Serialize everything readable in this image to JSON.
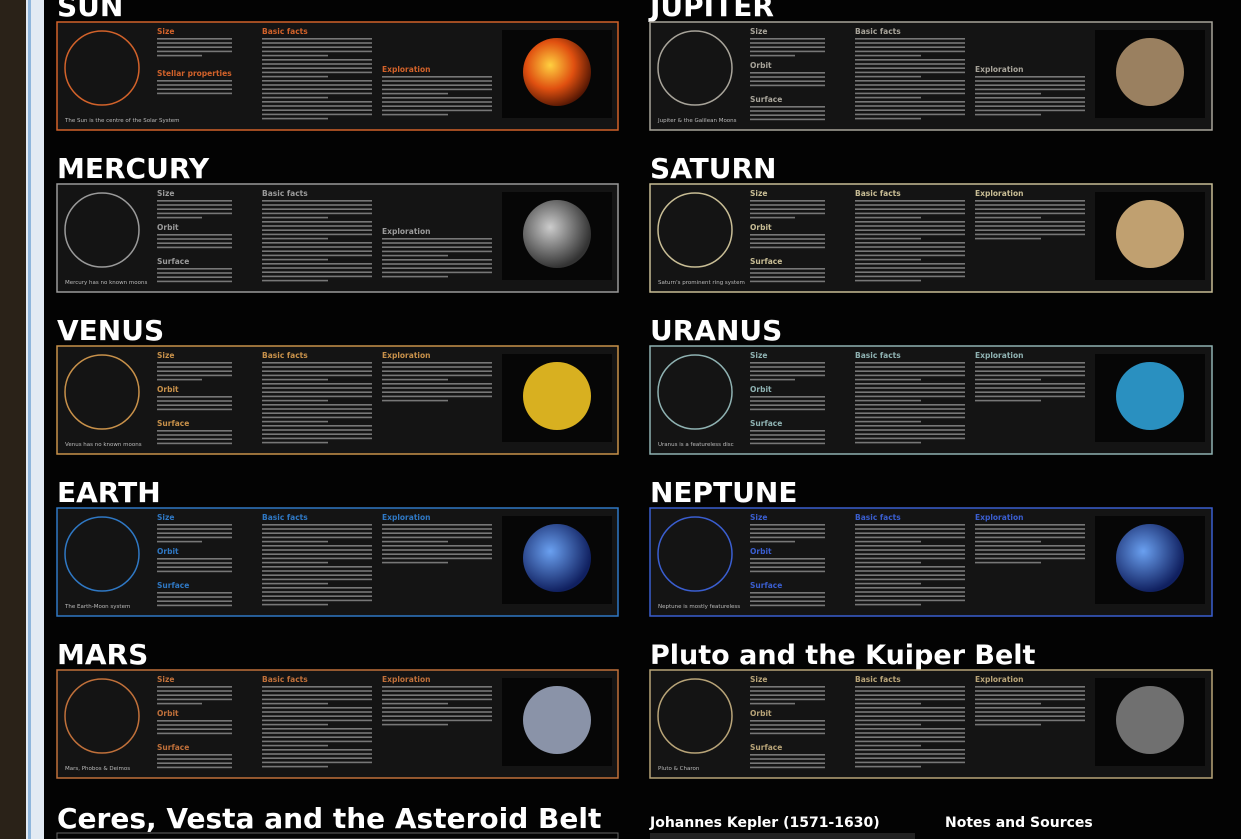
{
  "panels": [
    {
      "title": "SUN",
      "caption": "The Sun is the centre of the Solar System",
      "color": "#d2622a",
      "sections": [
        "Size",
        "Stellar properties"
      ],
      "facts": [
        "Basic facts",
        "Exploration"
      ]
    },
    {
      "title": "MERCURY",
      "caption": "Mercury has no known moons",
      "color": "#9a9a9a",
      "sections": [
        "Size",
        "Orbit",
        "Surface"
      ],
      "facts": [
        "Basic facts",
        "Exploration"
      ]
    },
    {
      "title": "VENUS",
      "caption": "Venus has no known moons",
      "color": "#c8914a",
      "sections": [
        "Size",
        "Orbit",
        "Surface"
      ],
      "facts": [
        "Basic facts",
        "Exploration"
      ]
    },
    {
      "title": "EARTH",
      "caption": "The Earth-Moon system",
      "color": "#2f78c4",
      "sections": [
        "Size",
        "Orbit",
        "Surface"
      ],
      "facts": [
        "Basic facts",
        "Exploration"
      ]
    },
    {
      "title": "MARS",
      "caption": "Mars, Phobos & Deimos",
      "color": "#c0703a",
      "sections": [
        "Size",
        "Orbit",
        "Surface"
      ],
      "facts": [
        "Basic facts",
        "Exploration"
      ]
    },
    {
      "title": "JUPITER",
      "caption": "Jupiter & the Galilean Moons",
      "color": "#a8a49a",
      "sections": [
        "Size",
        "Orbit",
        "Surface"
      ],
      "facts": [
        "Basic facts",
        "Exploration"
      ]
    },
    {
      "title": "SATURN",
      "caption": "Saturn's prominent ring system",
      "color": "#c8bd95",
      "sections": [
        "Size",
        "Orbit",
        "Surface"
      ],
      "facts": [
        "Basic facts",
        "Exploration"
      ]
    },
    {
      "title": "URANUS",
      "caption": "Uranus is a featureless disc",
      "color": "#8fb2b2",
      "sections": [
        "Size",
        "Orbit",
        "Surface"
      ],
      "facts": [
        "Basic facts",
        "Exploration"
      ]
    },
    {
      "title": "NEPTUNE",
      "caption": "Neptune is mostly featureless",
      "color": "#3a5ed0",
      "sections": [
        "Size",
        "Orbit",
        "Surface"
      ],
      "facts": [
        "Basic facts",
        "Exploration"
      ]
    },
    {
      "title": "Pluto and the Kuiper Belt",
      "caption": "Pluto & Charon",
      "color": "#b8a478",
      "sections": [
        "Size",
        "Orbit",
        "Surface"
      ],
      "facts": [
        "Basic facts",
        "Exploration"
      ]
    }
  ],
  "footer": {
    "asteroids": "Ceres, Vesta and the Asteroid Belt",
    "kepler": "Johannes Kepler (1571-1630)",
    "notes": "Notes and Sources"
  }
}
